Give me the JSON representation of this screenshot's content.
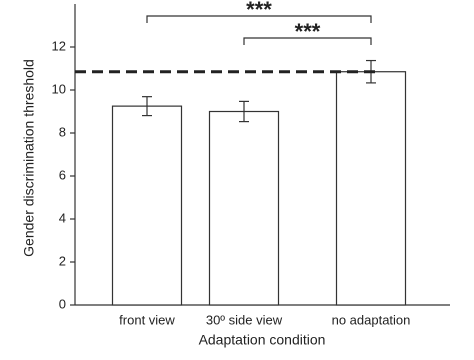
{
  "chart_data": {
    "type": "bar",
    "xlabel": "Adaptation condition",
    "ylabel": "Gender discrimination threshold",
    "categories": [
      "front view",
      "30º side view",
      "no adaptation"
    ],
    "values": [
      9.25,
      9.0,
      10.85
    ],
    "errors": [
      0.44,
      0.47,
      0.52
    ],
    "color": "#ffffff",
    "reference_line": 10.85,
    "ylim": [
      0,
      14
    ],
    "yticks": [
      0,
      2,
      4,
      6,
      8,
      10,
      12
    ],
    "annotations": [
      {
        "text": "***",
        "between": [
          "front view",
          "no adaptation"
        ]
      },
      {
        "text": "***",
        "between": [
          "30º side view",
          "no adaptation"
        ]
      }
    ]
  }
}
